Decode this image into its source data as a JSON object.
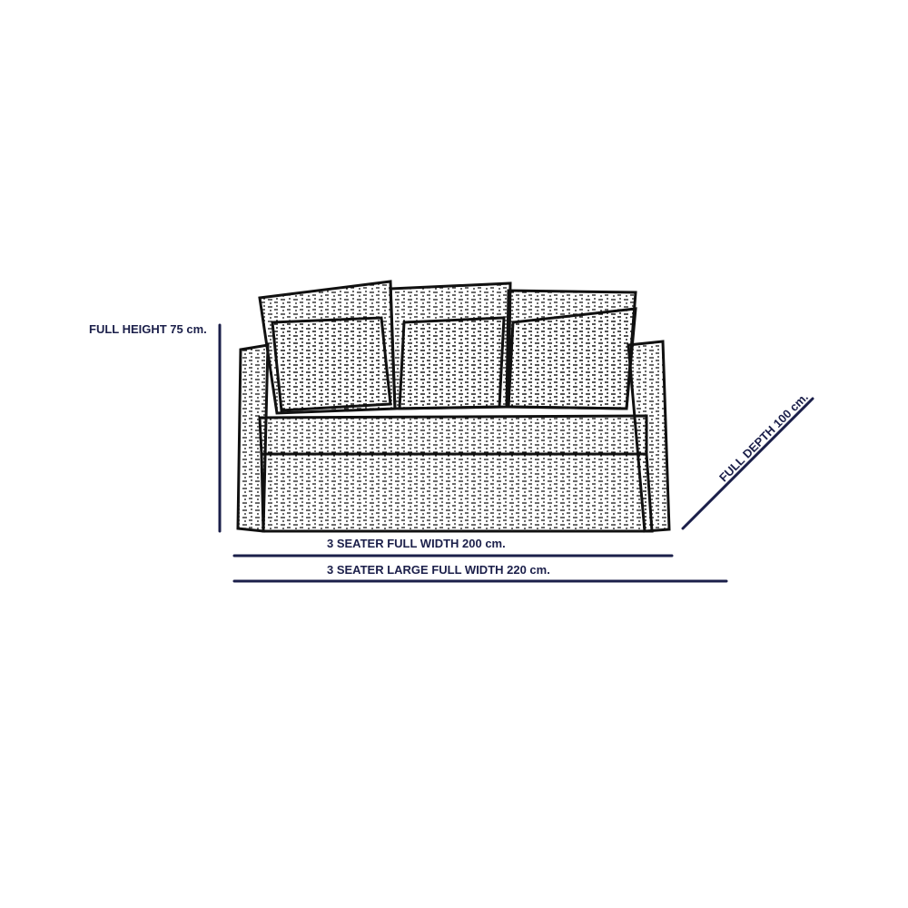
{
  "colors": {
    "dimension_line": "#1b1f4a",
    "sketch": "#111111"
  },
  "labels": {
    "height": "FULL HEIGHT 75 cm.",
    "depth": "FULL DEPTH 100 cm.",
    "width": "3 SEATER FULL WIDTH 200 cm.",
    "width_large": "3 SEATER LARGE FULL WIDTH 220 cm."
  },
  "illustration": {
    "subject": "sofa-sketch"
  }
}
